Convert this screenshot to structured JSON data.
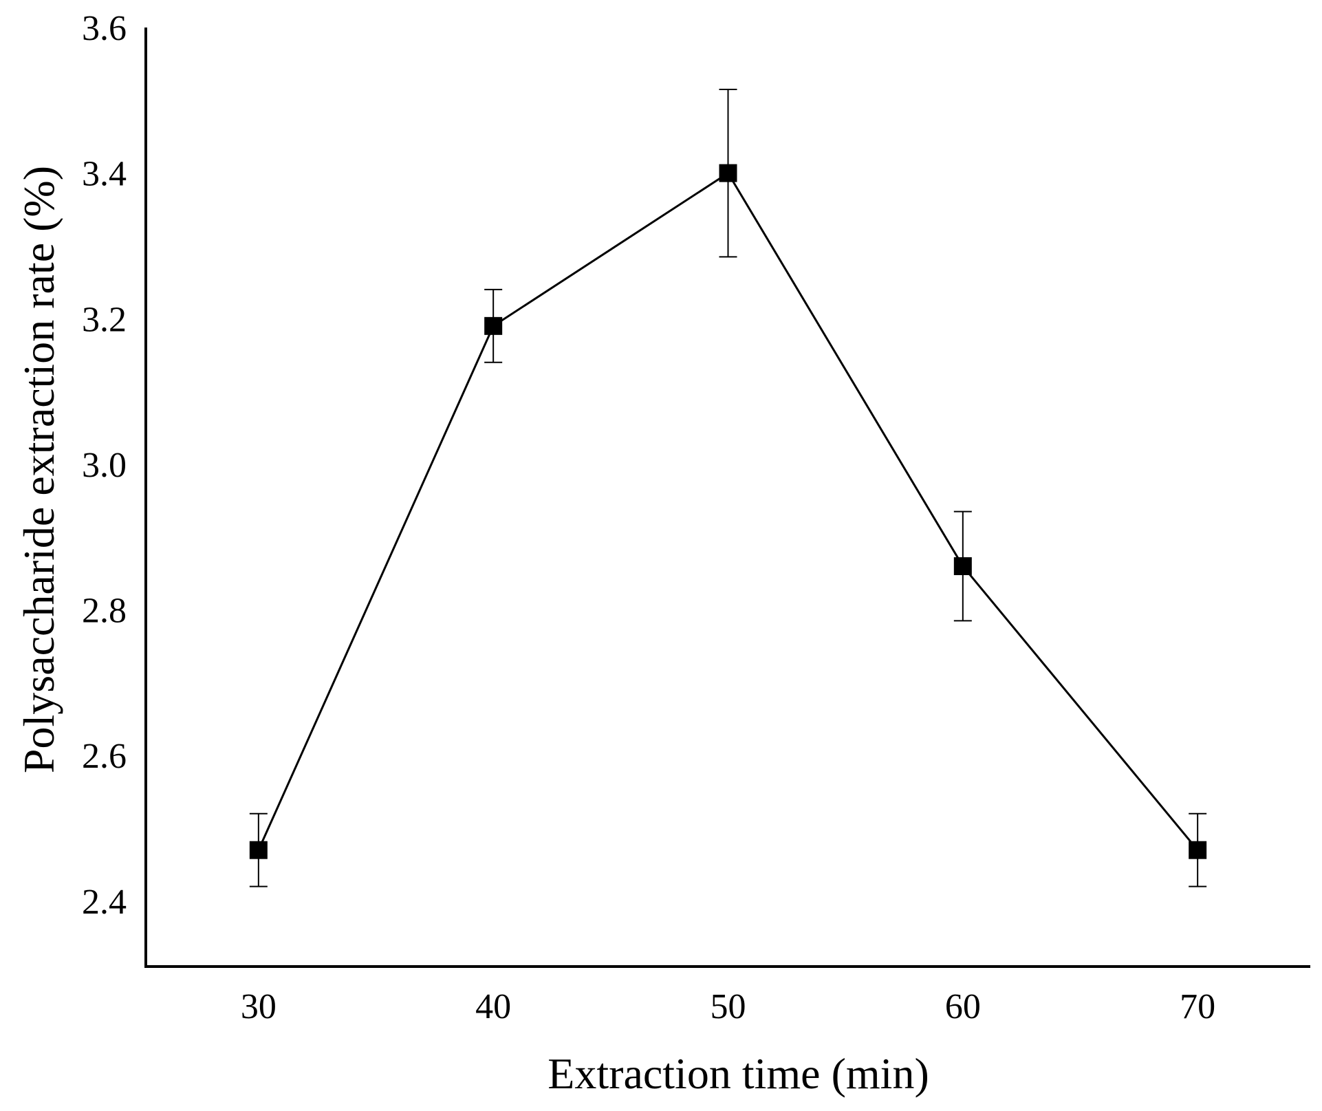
{
  "chart_data": {
    "type": "line",
    "title": "",
    "xlabel": "Extraction time (min)",
    "ylabel": "Polysaccharide extraction rate (%)",
    "x": [
      30,
      40,
      50,
      60,
      70
    ],
    "x_tick_labels": [
      "30",
      "40",
      "50",
      "60",
      "70"
    ],
    "y_tick_values": [
      2.4,
      2.6,
      2.8,
      3.0,
      3.2,
      3.4,
      3.6
    ],
    "y_tick_labels": [
      "2.4",
      "2.6",
      "2.8",
      "3.0",
      "3.2",
      "3.4",
      "3.6"
    ],
    "xlim": [
      25.2,
      74.8
    ],
    "ylim": [
      2.31,
      3.6
    ],
    "grid": false,
    "series": [
      {
        "name": "",
        "values": [
          2.47,
          3.19,
          3.4,
          2.86,
          2.47
        ],
        "errors": [
          0.05,
          0.05,
          0.115,
          0.075,
          0.05
        ],
        "marker": "square",
        "color": "#000000"
      }
    ]
  }
}
